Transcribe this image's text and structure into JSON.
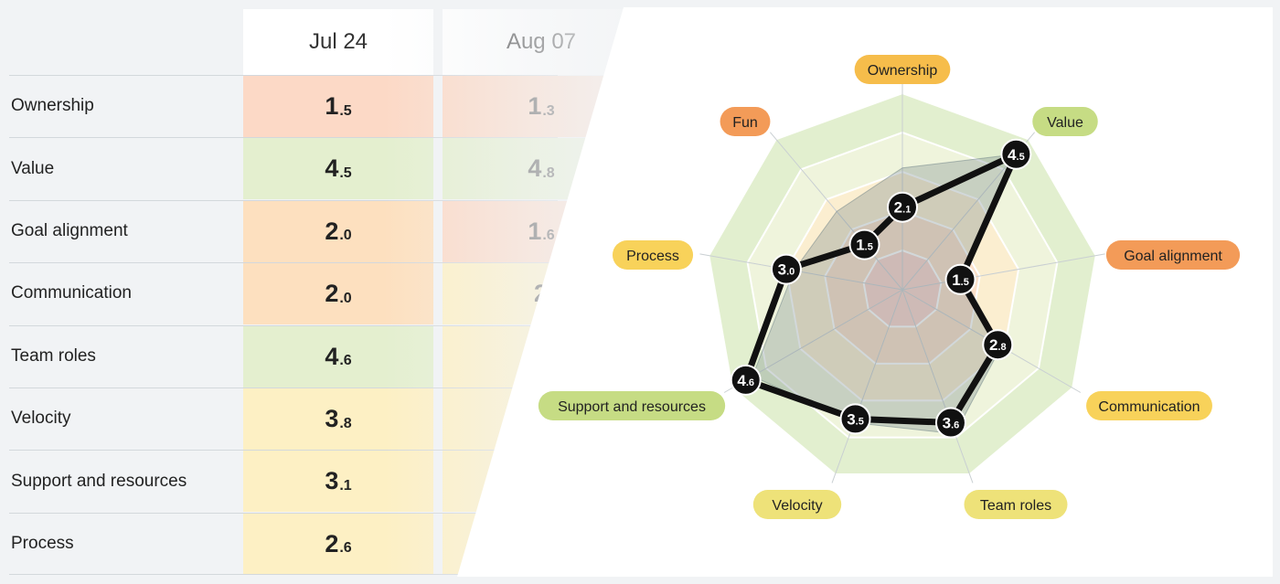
{
  "table": {
    "columns": [
      "Jul 24",
      "Aug 07"
    ],
    "rows": [
      {
        "label": "Ownership",
        "v1": {
          "int": "1",
          "dec": ".5"
        },
        "v2": {
          "int": "1",
          "dec": ".3"
        }
      },
      {
        "label": "Value",
        "v1": {
          "int": "4",
          "dec": ".5"
        },
        "v2": {
          "int": "4",
          "dec": ".8"
        }
      },
      {
        "label": "Goal alignment",
        "v1": {
          "int": "2",
          "dec": ".0"
        },
        "v2": {
          "int": "1",
          "dec": ".6"
        }
      },
      {
        "label": "Communication",
        "v1": {
          "int": "2",
          "dec": ".0"
        },
        "v2": {
          "int": "2",
          "dec": ""
        }
      },
      {
        "label": "Team roles",
        "v1": {
          "int": "4",
          "dec": ".6"
        },
        "v2": {
          "int": "",
          "dec": ""
        }
      },
      {
        "label": "Velocity",
        "v1": {
          "int": "3",
          "dec": ".8"
        },
        "v2": {
          "int": "",
          "dec": ""
        }
      },
      {
        "label": "Support and resources",
        "v1": {
          "int": "3",
          "dec": ".1"
        },
        "v2": {
          "int": "",
          "dec": ""
        }
      },
      {
        "label": "Process",
        "v1": {
          "int": "2",
          "dec": ".6"
        },
        "v2": {
          "int": "",
          "dec": ""
        }
      }
    ],
    "colors": {
      "red": "#fcd9c6",
      "orange": "#fde0bf",
      "yellow": "#fdf0c4",
      "green": "#e4efcf"
    },
    "row_colors_col1": [
      "red",
      "green",
      "orange",
      "orange",
      "green",
      "yellow",
      "yellow",
      "yellow"
    ],
    "row_colors_col2": [
      "red",
      "green",
      "red",
      "yellow",
      "yellow",
      "yellow",
      "yellow",
      "yellow"
    ]
  },
  "chart_data": {
    "type": "radar",
    "axes": [
      {
        "name": "Ownership",
        "value": 2.1,
        "int": "2",
        "dec": ".1",
        "badge": "#f6bd4b"
      },
      {
        "name": "Value",
        "value": 4.5,
        "int": "4",
        "dec": ".5",
        "badge": "#c6dc84"
      },
      {
        "name": "Goal alignment",
        "value": 1.5,
        "int": "1",
        "dec": ".5",
        "badge": "#f39b58"
      },
      {
        "name": "Communication",
        "value": 2.8,
        "int": "2",
        "dec": ".8",
        "badge": "#f8d25a"
      },
      {
        "name": "Team roles",
        "value": 3.6,
        "int": "3",
        "dec": ".6",
        "badge": "#eee279"
      },
      {
        "name": "Velocity",
        "value": 3.5,
        "int": "3",
        "dec": ".5",
        "badge": "#eee279"
      },
      {
        "name": "Support and resources",
        "value": 4.6,
        "int": "4",
        "dec": ".6",
        "badge": "#c6dc84"
      },
      {
        "name": "Process",
        "value": 3.0,
        "int": "3",
        "dec": ".0",
        "badge": "#f8d25a"
      },
      {
        "name": "Fun",
        "value": 1.5,
        "int": "1",
        "dec": ".5",
        "badge": "#f39b58"
      }
    ],
    "comparison_values": [
      3.1,
      4.5,
      1.6,
      2.9,
      3.9,
      3.6,
      4.4,
      2.8,
      2.6
    ],
    "max": 5,
    "rings": 5,
    "ring_colors": [
      "#f9d5cc",
      "#fbe0c9",
      "#fbeed0",
      "#eff4dc",
      "#e2efcf"
    ],
    "series_color": "#111111",
    "comparison_color": "#6b7f86"
  }
}
